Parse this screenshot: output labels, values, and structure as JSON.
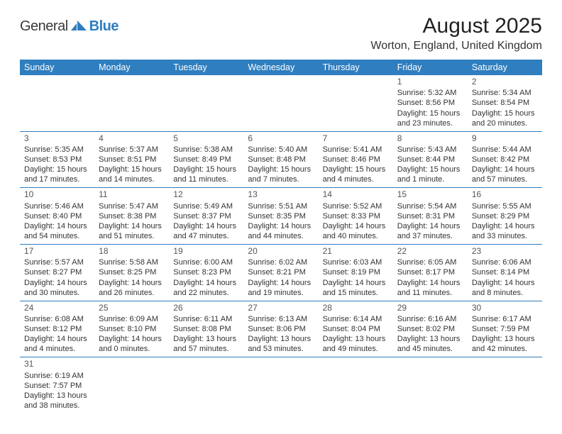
{
  "brand": {
    "word1": "General",
    "word2": "Blue"
  },
  "colors": {
    "header_bg": "#2f7ebf",
    "header_fg": "#ffffff",
    "cell_border": "#2f7ebf",
    "text": "#333333",
    "daynum": "#555555",
    "page_bg": "#ffffff"
  },
  "fonts": {
    "body_pt": 11,
    "daynum_pt": 12,
    "weekday_pt": 12.5,
    "title_pt": 30,
    "location_pt": 16
  },
  "title": "August 2025",
  "location": "Worton, England, United Kingdom",
  "weekdays": [
    "Sunday",
    "Monday",
    "Tuesday",
    "Wednesday",
    "Thursday",
    "Friday",
    "Saturday"
  ],
  "weeks": [
    [
      null,
      null,
      null,
      null,
      null,
      {
        "n": "1",
        "sr": "Sunrise: 5:32 AM",
        "ss": "Sunset: 8:56 PM",
        "dl": "Daylight: 15 hours and 23 minutes."
      },
      {
        "n": "2",
        "sr": "Sunrise: 5:34 AM",
        "ss": "Sunset: 8:54 PM",
        "dl": "Daylight: 15 hours and 20 minutes."
      }
    ],
    [
      {
        "n": "3",
        "sr": "Sunrise: 5:35 AM",
        "ss": "Sunset: 8:53 PM",
        "dl": "Daylight: 15 hours and 17 minutes."
      },
      {
        "n": "4",
        "sr": "Sunrise: 5:37 AM",
        "ss": "Sunset: 8:51 PM",
        "dl": "Daylight: 15 hours and 14 minutes."
      },
      {
        "n": "5",
        "sr": "Sunrise: 5:38 AM",
        "ss": "Sunset: 8:49 PM",
        "dl": "Daylight: 15 hours and 11 minutes."
      },
      {
        "n": "6",
        "sr": "Sunrise: 5:40 AM",
        "ss": "Sunset: 8:48 PM",
        "dl": "Daylight: 15 hours and 7 minutes."
      },
      {
        "n": "7",
        "sr": "Sunrise: 5:41 AM",
        "ss": "Sunset: 8:46 PM",
        "dl": "Daylight: 15 hours and 4 minutes."
      },
      {
        "n": "8",
        "sr": "Sunrise: 5:43 AM",
        "ss": "Sunset: 8:44 PM",
        "dl": "Daylight: 15 hours and 1 minute."
      },
      {
        "n": "9",
        "sr": "Sunrise: 5:44 AM",
        "ss": "Sunset: 8:42 PM",
        "dl": "Daylight: 14 hours and 57 minutes."
      }
    ],
    [
      {
        "n": "10",
        "sr": "Sunrise: 5:46 AM",
        "ss": "Sunset: 8:40 PM",
        "dl": "Daylight: 14 hours and 54 minutes."
      },
      {
        "n": "11",
        "sr": "Sunrise: 5:47 AM",
        "ss": "Sunset: 8:38 PM",
        "dl": "Daylight: 14 hours and 51 minutes."
      },
      {
        "n": "12",
        "sr": "Sunrise: 5:49 AM",
        "ss": "Sunset: 8:37 PM",
        "dl": "Daylight: 14 hours and 47 minutes."
      },
      {
        "n": "13",
        "sr": "Sunrise: 5:51 AM",
        "ss": "Sunset: 8:35 PM",
        "dl": "Daylight: 14 hours and 44 minutes."
      },
      {
        "n": "14",
        "sr": "Sunrise: 5:52 AM",
        "ss": "Sunset: 8:33 PM",
        "dl": "Daylight: 14 hours and 40 minutes."
      },
      {
        "n": "15",
        "sr": "Sunrise: 5:54 AM",
        "ss": "Sunset: 8:31 PM",
        "dl": "Daylight: 14 hours and 37 minutes."
      },
      {
        "n": "16",
        "sr": "Sunrise: 5:55 AM",
        "ss": "Sunset: 8:29 PM",
        "dl": "Daylight: 14 hours and 33 minutes."
      }
    ],
    [
      {
        "n": "17",
        "sr": "Sunrise: 5:57 AM",
        "ss": "Sunset: 8:27 PM",
        "dl": "Daylight: 14 hours and 30 minutes."
      },
      {
        "n": "18",
        "sr": "Sunrise: 5:58 AM",
        "ss": "Sunset: 8:25 PM",
        "dl": "Daylight: 14 hours and 26 minutes."
      },
      {
        "n": "19",
        "sr": "Sunrise: 6:00 AM",
        "ss": "Sunset: 8:23 PM",
        "dl": "Daylight: 14 hours and 22 minutes."
      },
      {
        "n": "20",
        "sr": "Sunrise: 6:02 AM",
        "ss": "Sunset: 8:21 PM",
        "dl": "Daylight: 14 hours and 19 minutes."
      },
      {
        "n": "21",
        "sr": "Sunrise: 6:03 AM",
        "ss": "Sunset: 8:19 PM",
        "dl": "Daylight: 14 hours and 15 minutes."
      },
      {
        "n": "22",
        "sr": "Sunrise: 6:05 AM",
        "ss": "Sunset: 8:17 PM",
        "dl": "Daylight: 14 hours and 11 minutes."
      },
      {
        "n": "23",
        "sr": "Sunrise: 6:06 AM",
        "ss": "Sunset: 8:14 PM",
        "dl": "Daylight: 14 hours and 8 minutes."
      }
    ],
    [
      {
        "n": "24",
        "sr": "Sunrise: 6:08 AM",
        "ss": "Sunset: 8:12 PM",
        "dl": "Daylight: 14 hours and 4 minutes."
      },
      {
        "n": "25",
        "sr": "Sunrise: 6:09 AM",
        "ss": "Sunset: 8:10 PM",
        "dl": "Daylight: 14 hours and 0 minutes."
      },
      {
        "n": "26",
        "sr": "Sunrise: 6:11 AM",
        "ss": "Sunset: 8:08 PM",
        "dl": "Daylight: 13 hours and 57 minutes."
      },
      {
        "n": "27",
        "sr": "Sunrise: 6:13 AM",
        "ss": "Sunset: 8:06 PM",
        "dl": "Daylight: 13 hours and 53 minutes."
      },
      {
        "n": "28",
        "sr": "Sunrise: 6:14 AM",
        "ss": "Sunset: 8:04 PM",
        "dl": "Daylight: 13 hours and 49 minutes."
      },
      {
        "n": "29",
        "sr": "Sunrise: 6:16 AM",
        "ss": "Sunset: 8:02 PM",
        "dl": "Daylight: 13 hours and 45 minutes."
      },
      {
        "n": "30",
        "sr": "Sunrise: 6:17 AM",
        "ss": "Sunset: 7:59 PM",
        "dl": "Daylight: 13 hours and 42 minutes."
      }
    ],
    [
      {
        "n": "31",
        "sr": "Sunrise: 6:19 AM",
        "ss": "Sunset: 7:57 PM",
        "dl": "Daylight: 13 hours and 38 minutes."
      },
      null,
      null,
      null,
      null,
      null,
      null
    ]
  ]
}
